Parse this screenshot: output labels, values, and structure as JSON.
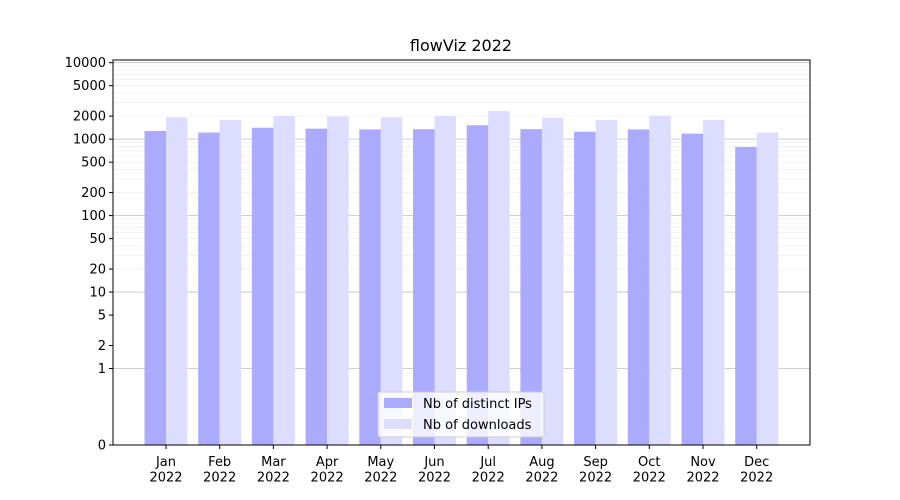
{
  "chart_data": {
    "type": "bar",
    "title": "flowViz 2022",
    "xlabel": "",
    "ylabel": "",
    "yscale": "symlog",
    "ylim": [
      0,
      10000
    ],
    "yticks": [
      0,
      1,
      2,
      5,
      10,
      20,
      50,
      100,
      200,
      500,
      1000,
      2000,
      5000,
      10000
    ],
    "ytick_labels": [
      "0",
      "1",
      "2",
      "5",
      "10",
      "20",
      "50",
      "100",
      "200",
      "500",
      "1000",
      "2000",
      "5000",
      "10000"
    ],
    "grid": true,
    "legend_position": "bottom-center",
    "categories": [
      "Jan\n2022",
      "Feb\n2022",
      "Mar\n2022",
      "Apr\n2022",
      "May\n2022",
      "Jun\n2022",
      "Jul\n2022",
      "Aug\n2022",
      "Sep\n2022",
      "Oct\n2022",
      "Nov\n2022",
      "Dec\n2022"
    ],
    "series": [
      {
        "name": "Nb of distinct IPs",
        "color": "#aaaaff",
        "values": [
          1280,
          1220,
          1410,
          1370,
          1340,
          1350,
          1520,
          1350,
          1250,
          1340,
          1180,
          790
        ]
      },
      {
        "name": "Nb of downloads",
        "color": "#ddddff",
        "values": [
          1920,
          1780,
          2010,
          1980,
          1920,
          2010,
          2330,
          1900,
          1780,
          2020,
          1780,
          1220
        ]
      }
    ]
  }
}
